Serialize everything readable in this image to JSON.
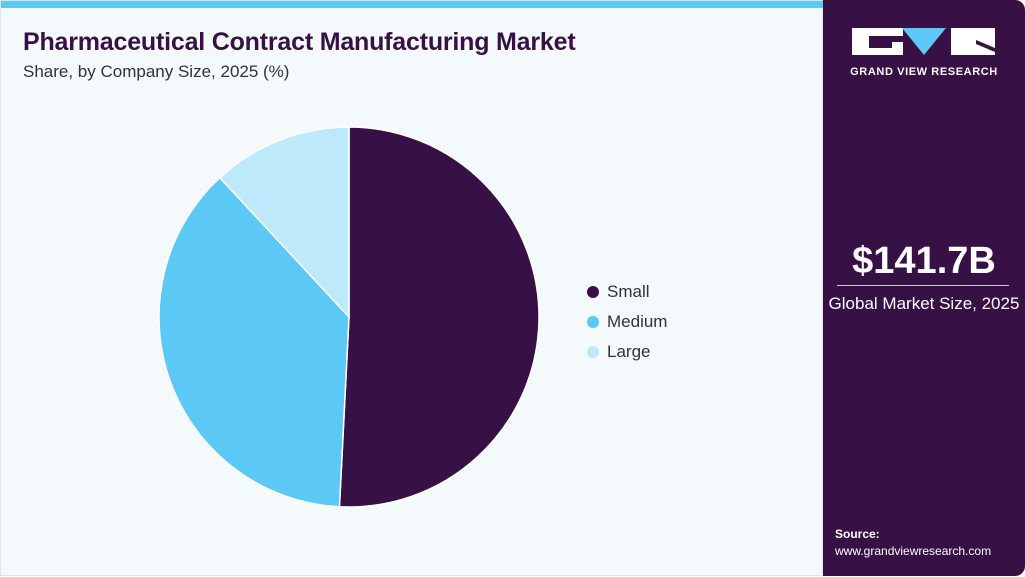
{
  "header": {
    "title": "Pharmaceutical Contract Manufacturing Market",
    "subtitle": "Share, by Company Size, 2025 (%)"
  },
  "chart_data": {
    "type": "pie",
    "title": "Pharmaceutical Contract Manufacturing Market",
    "subtitle": "Share, by Company Size, 2025 (%)",
    "categories": [
      "Small",
      "Medium",
      "Large"
    ],
    "values": [
      50.8,
      37.3,
      11.9
    ],
    "colors": [
      "#371146",
      "#5bc8f5",
      "#bde9fa"
    ],
    "start": "top",
    "direction": "clockwise",
    "legend_position": "right"
  },
  "sidebar": {
    "logo_text": "GRAND VIEW RESEARCH",
    "market_value": "$141.7B",
    "market_label": "Global Market Size, 2025",
    "source_label": "Source:",
    "source_url": "www.grandviewresearch.com"
  }
}
